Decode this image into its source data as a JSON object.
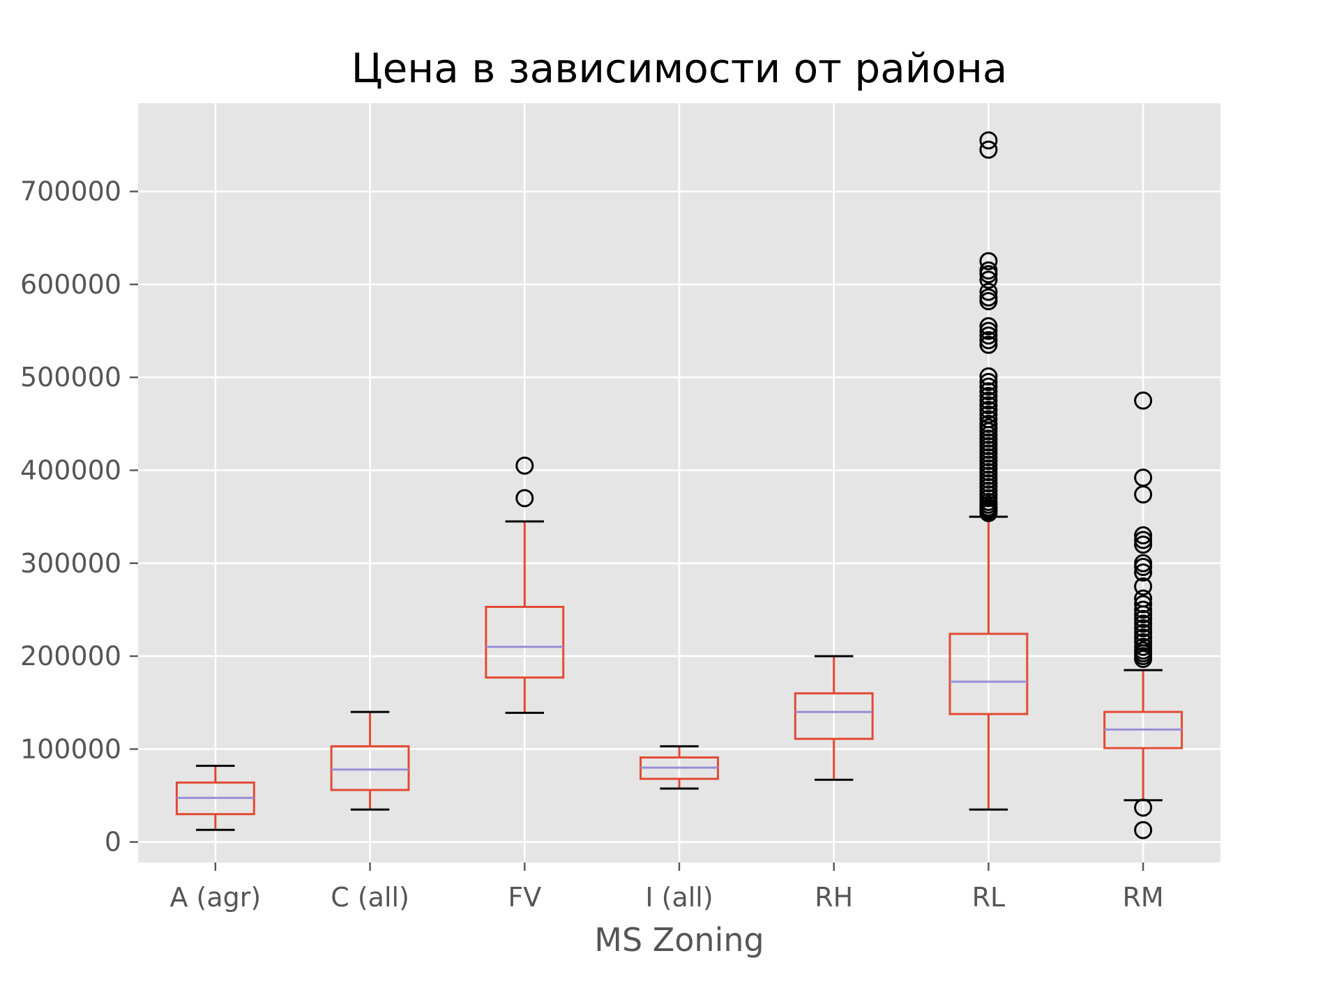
{
  "chart_data": {
    "type": "boxplot",
    "title": "Цена в зависимости от района",
    "xlabel": "MS Zoning",
    "ylabel": "",
    "ylim": [
      -22000,
      795000
    ],
    "yticks": [
      0,
      100000,
      200000,
      300000,
      400000,
      500000,
      600000,
      700000
    ],
    "ytick_labels": [
      "0",
      "100000",
      "200000",
      "300000",
      "400000",
      "500000",
      "600000",
      "700000"
    ],
    "grid": true,
    "colors": {
      "background": "#e5e5e5",
      "grid": "#ffffff",
      "box": "#e24a33",
      "median": "#988ed5",
      "cap": "#000000",
      "flier": "#000000"
    },
    "categories": [
      "A (agr)",
      "C (all)",
      "FV",
      "I (all)",
      "RH",
      "RL",
      "RM"
    ],
    "boxes": [
      {
        "name": "A (agr)",
        "whislo": 13100,
        "q1": 30000,
        "med": 47500,
        "q3": 64000,
        "whishi": 82000,
        "fliers": []
      },
      {
        "name": "C (all)",
        "whislo": 34900,
        "q1": 56000,
        "med": 78000,
        "q3": 103000,
        "whishi": 140000,
        "fliers": []
      },
      {
        "name": "FV",
        "whislo": 139000,
        "q1": 177000,
        "med": 210000,
        "q3": 253000,
        "whishi": 345000,
        "fliers": [
          370000,
          405000
        ]
      },
      {
        "name": "I (all)",
        "whislo": 57500,
        "q1": 68000,
        "med": 80000,
        "q3": 91000,
        "whishi": 103000,
        "fliers": []
      },
      {
        "name": "RH",
        "whislo": 67000,
        "q1": 111000,
        "med": 140000,
        "q3": 160000,
        "whishi": 200000,
        "fliers": []
      },
      {
        "name": "RL",
        "whislo": 34900,
        "q1": 137700,
        "med": 172500,
        "q3": 224000,
        "whishi": 350000,
        "fliers": [
          354000,
          356000,
          358000,
          360000,
          363000,
          366000,
          370000,
          374000,
          378000,
          382000,
          386000,
          390000,
          394000,
          398000,
          402000,
          406000,
          410000,
          414000,
          418000,
          422000,
          426000,
          430000,
          434000,
          438000,
          442000,
          446000,
          450000,
          455000,
          460000,
          465000,
          470000,
          475000,
          480000,
          485000,
          490000,
          495000,
          501000,
          535000,
          540000,
          545000,
          550000,
          555000,
          582000,
          586000,
          592000,
          605000,
          611000,
          615000,
          625000,
          745000,
          755000
        ]
      },
      {
        "name": "RM",
        "whislo": 45000,
        "q1": 101000,
        "med": 121000,
        "q3": 140000,
        "whishi": 185000,
        "fliers": [
          12800,
          37000,
          197000,
          200000,
          203000,
          206000,
          210000,
          215000,
          220000,
          225000,
          230000,
          235000,
          240000,
          245000,
          250000,
          256000,
          262000,
          275000,
          290000,
          296000,
          300000,
          320000,
          325000,
          330000,
          374000,
          392000,
          475000
        ]
      }
    ]
  }
}
